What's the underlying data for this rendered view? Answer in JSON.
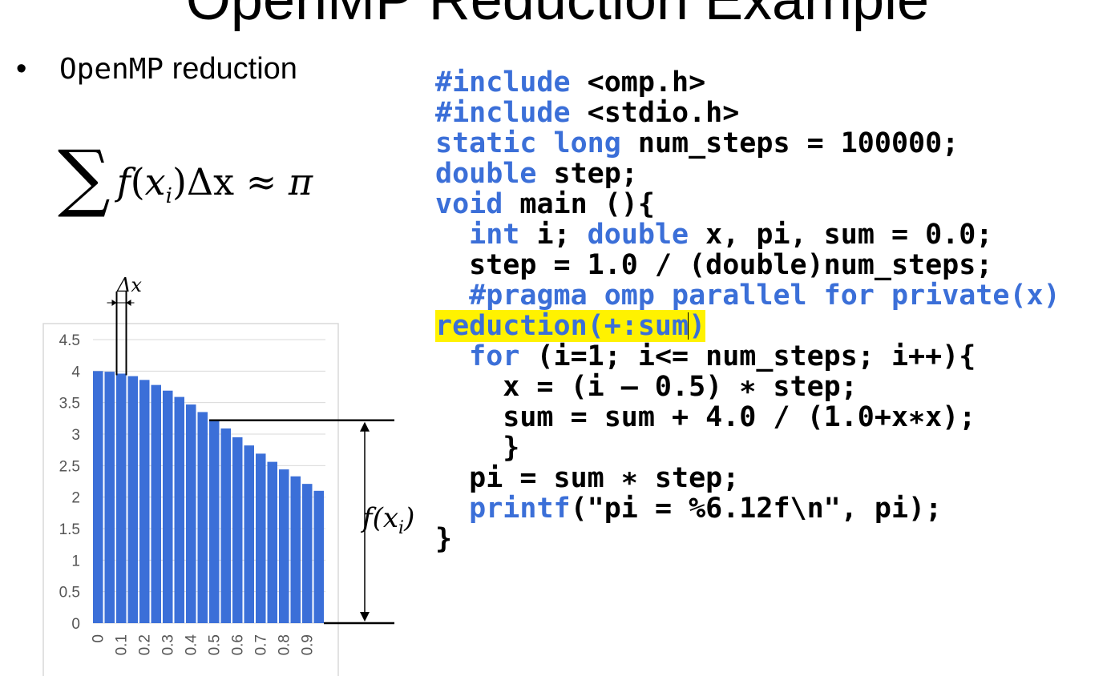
{
  "slide": {
    "title": "OpenMP Reduction Example",
    "bullet_symbol": "•",
    "bullet_mono": "OpenMP",
    "bullet_rest": " reduction",
    "formula": {
      "sum_symbol": "∑",
      "f": "f",
      "x": "x",
      "sub": "i",
      "delta_x": "Δx",
      "approx": "≈",
      "pi": "π"
    }
  },
  "code": {
    "lines": [
      [
        {
          "t": "#include",
          "k": "kw"
        },
        {
          "t": " <omp.h>"
        }
      ],
      [
        {
          "t": "#include",
          "k": "kw"
        },
        {
          "t": " <stdio.h>"
        }
      ],
      [
        {
          "t": "static long",
          "k": "kw"
        },
        {
          "t": " num_steps = 100000;"
        }
      ],
      [
        {
          "t": "double",
          "k": "kw"
        },
        {
          "t": " step;"
        }
      ],
      [
        {
          "t": "void",
          "k": "kw"
        },
        {
          "t": " main (){"
        }
      ],
      [
        {
          "t": "  "
        },
        {
          "t": "int",
          "k": "kw"
        },
        {
          "t": " i; "
        },
        {
          "t": "double",
          "k": "kw"
        },
        {
          "t": " x, pi, sum = 0.0;"
        }
      ],
      [
        {
          "t": "  step = 1.0 / (double)num_steps;"
        }
      ],
      [
        {
          "t": "  "
        },
        {
          "t": "#pragma omp parallel for private(x)",
          "k": "kw"
        }
      ],
      [
        {
          "t": "reduction(+:sum",
          "k": "kw",
          "hl": true
        },
        {
          "cursor": true
        },
        {
          "t": ")",
          "k": "kw",
          "hl": true
        }
      ],
      [
        {
          "t": "  "
        },
        {
          "t": "for",
          "k": "kw"
        },
        {
          "t": " (i=1; i<= num_steps; i++){"
        }
      ],
      [
        {
          "t": "    x = (i – 0.5) ∗ step;"
        }
      ],
      [
        {
          "t": "    sum = sum + 4.0 / (1.0+x∗x);"
        }
      ],
      [
        {
          "t": "    }"
        }
      ],
      [
        {
          "t": "  pi = sum ∗ step;"
        }
      ],
      [
        {
          "t": "  "
        },
        {
          "t": "printf",
          "k": "kw"
        },
        {
          "t": "(\"pi = %6.12f\\n\", pi);"
        }
      ],
      [
        {
          "t": "}"
        }
      ]
    ]
  },
  "diagram": {
    "delta_label": "Δx",
    "fx_label": "f(x_i)"
  },
  "colors": {
    "keyword": "#3b6fd8",
    "bar": "#3b6fd8",
    "highlight": "#fff200"
  },
  "chart_data": {
    "type": "bar",
    "title": "",
    "xlabel": "",
    "ylabel": "",
    "categories": [
      "0",
      "",
      "0.1",
      "",
      "0.2",
      "",
      "0.3",
      "",
      "0.4",
      "",
      "0.5",
      "",
      "0.6",
      "",
      "0.7",
      "",
      "0.8",
      "",
      "0.9",
      ""
    ],
    "x_tick_labels": [
      "0",
      "0.1",
      "0.2",
      "0.3",
      "0.4",
      "0.5",
      "0.6",
      "0.7",
      "0.8",
      "0.9"
    ],
    "y_tick_labels": [
      "0",
      "0.5",
      "1",
      "1.5",
      "2",
      "2.5",
      "3",
      "3.5",
      "4",
      "4.5"
    ],
    "values": [
      4.0,
      3.99,
      3.96,
      3.92,
      3.86,
      3.78,
      3.69,
      3.59,
      3.47,
      3.35,
      3.22,
      3.09,
      2.95,
      2.82,
      2.69,
      2.56,
      2.44,
      2.33,
      2.21,
      2.1
    ],
    "ylim": [
      0,
      4.5
    ],
    "grid": true,
    "legend": "none"
  }
}
